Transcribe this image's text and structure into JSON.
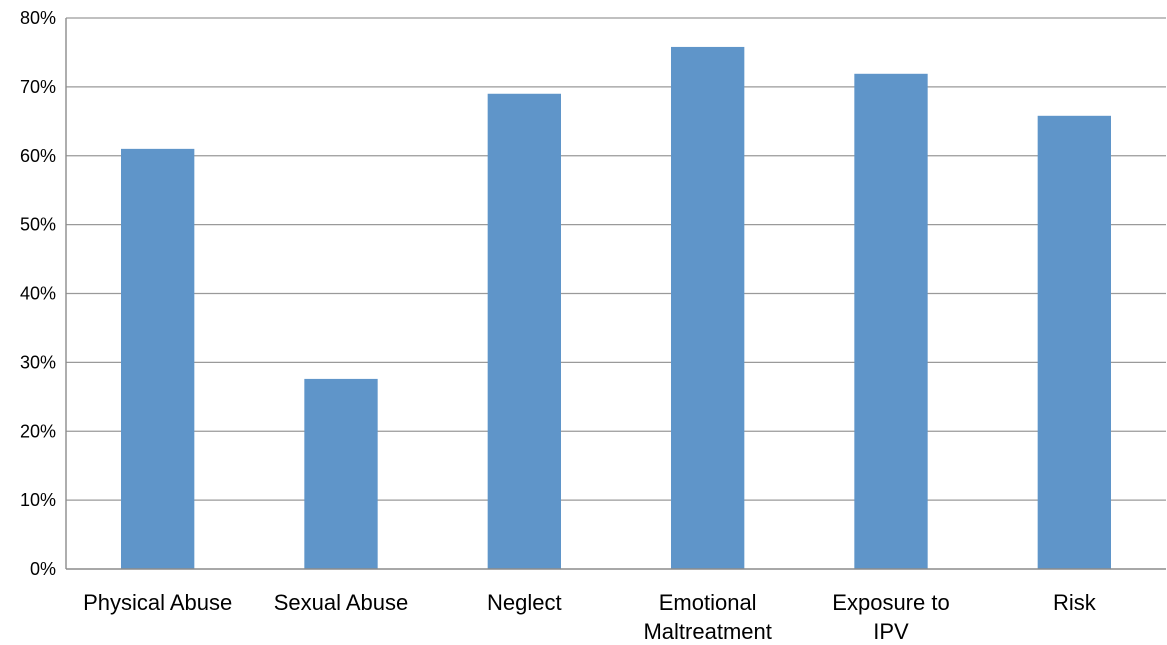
{
  "chart_data": {
    "type": "bar",
    "title": "",
    "xlabel": "",
    "ylabel": "",
    "categories": [
      "Physical Abuse",
      "Sexual Abuse",
      "Neglect",
      "Emotional Maltreatment",
      "Exposure to IPV",
      "Risk"
    ],
    "category_lines": [
      [
        "Physical Abuse"
      ],
      [
        "Sexual Abuse"
      ],
      [
        "Neglect"
      ],
      [
        "Emotional",
        "Maltreatment"
      ],
      [
        "Exposure to",
        "IPV"
      ],
      [
        "Risk"
      ]
    ],
    "values": [
      61,
      27.6,
      69,
      75.8,
      71.9,
      65.8
    ],
    "ylim": [
      0,
      80
    ],
    "yticks": [
      0,
      10,
      20,
      30,
      40,
      50,
      60,
      70,
      80
    ],
    "ytick_labels": [
      "0%",
      "10%",
      "20%",
      "30%",
      "40%",
      "50%",
      "60%",
      "70%",
      "80%"
    ],
    "grid": true,
    "legend": "none",
    "bar_color": "#5f95c9"
  }
}
